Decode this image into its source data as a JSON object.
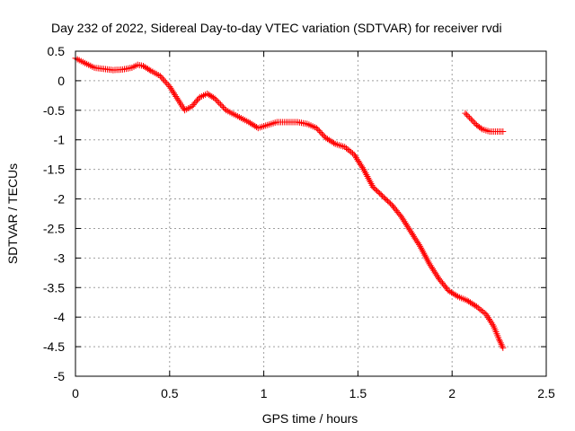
{
  "chart_data": {
    "type": "scatter",
    "title": "Day 232 of 2022, Sidereal Day-to-day VTEC variation (SDTVAR) for receiver rvdi",
    "xlabel": "GPS time / hours",
    "ylabel": "SDTVAR / TECUs",
    "xlim": [
      0,
      2.5
    ],
    "ylim": [
      -5,
      0.5
    ],
    "xticks": [
      0,
      0.5,
      1,
      1.5,
      2,
      2.5
    ],
    "xtick_labels": [
      "0",
      "0.5",
      "1",
      "1.5",
      "2",
      "2.5"
    ],
    "yticks": [
      0.5,
      0,
      -0.5,
      -1,
      -1.5,
      -2,
      -2.5,
      -3,
      -3.5,
      -4,
      -4.5,
      -5
    ],
    "ytick_labels": [
      "0.5",
      "0",
      "-0.5",
      "-1",
      "-1.5",
      "-2",
      "-2.5",
      "-3",
      "-3.5",
      "-4",
      "-4.5",
      "-5"
    ],
    "grid": true,
    "marker": "+",
    "series": [
      {
        "name": "SDTVAR segment 1",
        "color": "#ff0000",
        "points": [
          [
            0.0,
            0.38
          ],
          [
            0.05,
            0.3
          ],
          [
            0.1,
            0.22
          ],
          [
            0.15,
            0.2
          ],
          [
            0.2,
            0.18
          ],
          [
            0.25,
            0.19
          ],
          [
            0.3,
            0.22
          ],
          [
            0.33,
            0.27
          ],
          [
            0.36,
            0.25
          ],
          [
            0.4,
            0.17
          ],
          [
            0.45,
            0.08
          ],
          [
            0.5,
            -0.1
          ],
          [
            0.55,
            -0.35
          ],
          [
            0.58,
            -0.5
          ],
          [
            0.62,
            -0.43
          ],
          [
            0.66,
            -0.28
          ],
          [
            0.7,
            -0.22
          ],
          [
            0.74,
            -0.3
          ],
          [
            0.8,
            -0.5
          ],
          [
            0.86,
            -0.6
          ],
          [
            0.92,
            -0.7
          ],
          [
            0.97,
            -0.8
          ],
          [
            1.02,
            -0.75
          ],
          [
            1.07,
            -0.7
          ],
          [
            1.12,
            -0.7
          ],
          [
            1.18,
            -0.7
          ],
          [
            1.23,
            -0.73
          ],
          [
            1.28,
            -0.8
          ],
          [
            1.33,
            -0.97
          ],
          [
            1.38,
            -1.07
          ],
          [
            1.43,
            -1.12
          ],
          [
            1.48,
            -1.25
          ],
          [
            1.53,
            -1.5
          ],
          [
            1.58,
            -1.8
          ],
          [
            1.63,
            -1.95
          ],
          [
            1.68,
            -2.1
          ],
          [
            1.73,
            -2.3
          ],
          [
            1.78,
            -2.55
          ],
          [
            1.83,
            -2.8
          ],
          [
            1.88,
            -3.1
          ],
          [
            1.93,
            -3.35
          ],
          [
            1.98,
            -3.55
          ],
          [
            2.03,
            -3.65
          ],
          [
            2.08,
            -3.72
          ],
          [
            2.13,
            -3.82
          ],
          [
            2.18,
            -3.95
          ],
          [
            2.22,
            -4.15
          ],
          [
            2.25,
            -4.38
          ],
          [
            2.27,
            -4.52
          ]
        ]
      },
      {
        "name": "SDTVAR segment 2",
        "color": "#ff0000",
        "points": [
          [
            2.07,
            -0.55
          ],
          [
            2.1,
            -0.65
          ],
          [
            2.13,
            -0.75
          ],
          [
            2.16,
            -0.82
          ],
          [
            2.2,
            -0.86
          ],
          [
            2.24,
            -0.86
          ],
          [
            2.27,
            -0.86
          ]
        ]
      }
    ]
  }
}
